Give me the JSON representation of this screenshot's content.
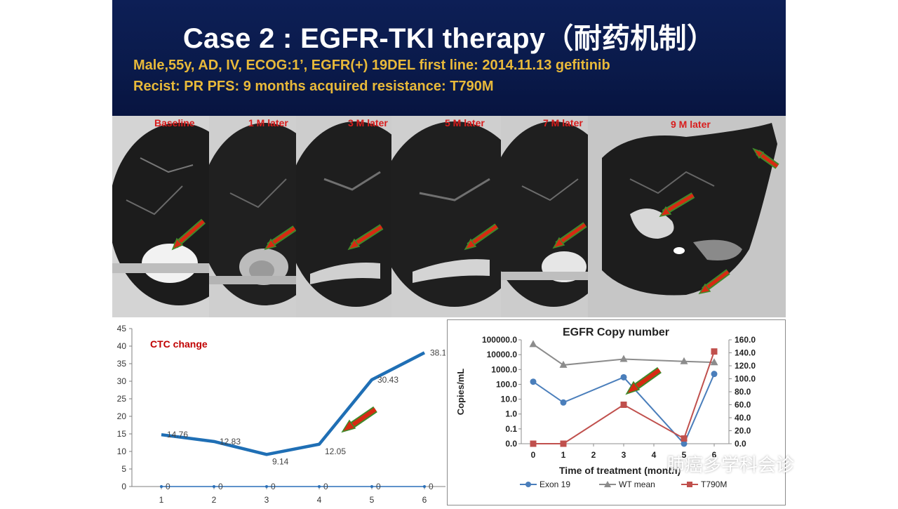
{
  "slide": {
    "title": "Case 2 : EGFR-TKI therapy（耐药机制）",
    "subtitle_line1": "Male,55y, AD, IV, ECOG:1’, EGFR(+) 19DEL first line: 2014.11.13 gefitinib",
    "subtitle_line2": "Recist: PR PFS: 9 months  acquired resistance: T790M",
    "watermark": "肺癌多学科会诊"
  },
  "ct_scans": [
    {
      "label": "Baseline"
    },
    {
      "label": "1 M later"
    },
    {
      "label": "3 M later"
    },
    {
      "label": "5 M later"
    },
    {
      "label": "7 M later"
    },
    {
      "label": "9 M later"
    }
  ],
  "chart_data": [
    {
      "type": "line",
      "title": "CTC change",
      "categories": [
        "1",
        "2",
        "3",
        "4",
        "5",
        "6"
      ],
      "ylim": [
        0,
        45
      ],
      "yticks": [
        "0",
        "5",
        "10",
        "15",
        "20",
        "25",
        "30",
        "35",
        "40",
        "45"
      ],
      "series": [
        {
          "values": [
            14.76,
            12.83,
            9.14,
            12.05,
            30.43,
            38.12
          ],
          "labels": [
            "14.76",
            "12.83",
            "9.14",
            "12.05",
            "30.43",
            "38.12"
          ],
          "color": "#1f6fb5"
        },
        {
          "values": [
            0,
            0,
            0,
            0,
            0,
            0
          ],
          "labels": [
            "0",
            "0",
            "0",
            "0",
            "0",
            "0"
          ],
          "color": "#2a6fb8"
        }
      ],
      "grid": false
    },
    {
      "type": "line",
      "title": "EGFR Copy number",
      "xlabel": "Time of treatment (month)",
      "ylabel": "Copies/mL",
      "x": [
        0,
        1,
        2,
        3,
        4,
        5,
        6
      ],
      "xticks": [
        "0",
        "1",
        "2",
        "3",
        "4",
        "5",
        "6"
      ],
      "y_left_scale": "log",
      "y_left_ticks": [
        "0.0",
        "0.1",
        "1.0",
        "10.0",
        "100.0",
        "1000.0",
        "10000.0",
        "100000.0"
      ],
      "y_right_ticks": [
        "0.0",
        "20.0",
        "40.0",
        "60.0",
        "80.0",
        "100.0",
        "120.0",
        "140.0",
        "160.0"
      ],
      "y_right_lim": [
        0,
        160
      ],
      "series": [
        {
          "name": "Exon 19",
          "axis": "left",
          "color": "#4a7ebb",
          "marker": "circle",
          "points": [
            [
              0,
              150
            ],
            [
              1,
              6
            ],
            [
              3,
              300
            ],
            [
              5,
              0
            ],
            [
              6,
              500
            ]
          ]
        },
        {
          "name": "WT mean",
          "axis": "left",
          "color": "#8c8c8c",
          "marker": "triangle",
          "points": [
            [
              0,
              50000
            ],
            [
              1,
              2000
            ],
            [
              3,
              5000
            ],
            [
              5,
              3500
            ],
            [
              6,
              3000
            ]
          ]
        },
        {
          "name": "T790M",
          "axis": "right",
          "color": "#c0504d",
          "marker": "square",
          "points": [
            [
              0,
              0
            ],
            [
              1,
              0
            ],
            [
              3,
              60
            ],
            [
              5,
              8
            ],
            [
              6,
              142
            ]
          ]
        }
      ],
      "legend": "bottom"
    }
  ]
}
